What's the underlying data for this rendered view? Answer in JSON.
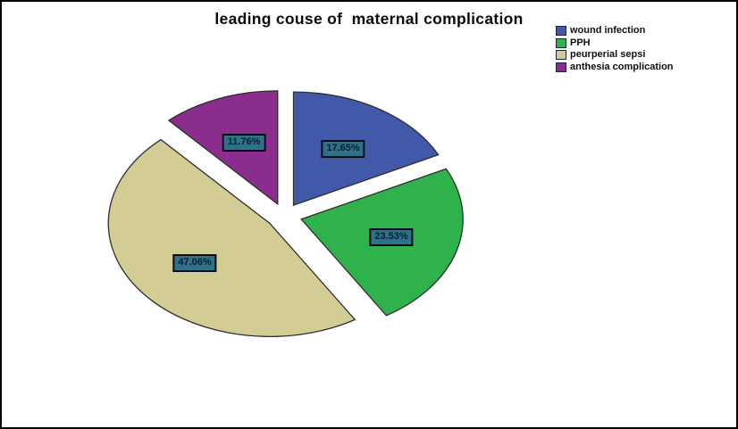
{
  "chart_data": {
    "type": "pie",
    "title": "leading couse of  maternal complication",
    "exploded": true,
    "start_angle_deg": 0,
    "direction": "clockwise",
    "legend_position": "top-right",
    "slice_border_color": "#2e2e2e",
    "label_box_fill": "#2e7189",
    "label_box_border": "#0d0d1a",
    "slices": [
      {
        "label": "wound infection",
        "value": 17.65,
        "pct_label": "17.65%",
        "color": "#4159a8"
      },
      {
        "label": "PPH",
        "value": 23.53,
        "pct_label": "23.53%",
        "color": "#2fb14b"
      },
      {
        "label": "peurperial sepsi",
        "value": 47.06,
        "pct_label": "47.06%",
        "color": "#d3cc95"
      },
      {
        "label": "anthesia complication",
        "value": 11.76,
        "pct_label": "11.76%",
        "color": "#8a2d8c"
      }
    ]
  }
}
